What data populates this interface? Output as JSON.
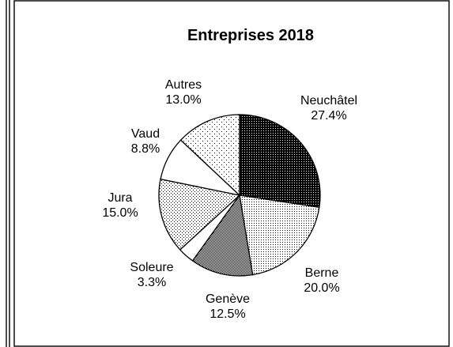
{
  "chart_data": {
    "type": "pie",
    "title": "Entreprises 2018",
    "slices": [
      {
        "label": "Neuchâtel",
        "percent_label": "27.4%",
        "value": 27.4,
        "pattern": "dense-dots"
      },
      {
        "label": "Berne",
        "percent_label": "20.0%",
        "value": 20.0,
        "pattern": "fine-dots"
      },
      {
        "label": "Genève",
        "percent_label": "12.5%",
        "value": 12.5,
        "pattern": "checker"
      },
      {
        "label": "Soleure",
        "percent_label": "3.3%",
        "value": 3.3,
        "pattern": "white"
      },
      {
        "label": "Jura",
        "percent_label": "15.0%",
        "value": 15.0,
        "pattern": "medium-dots"
      },
      {
        "label": "Vaud",
        "percent_label": "8.8%",
        "value": 8.8,
        "pattern": "white"
      },
      {
        "label": "Autres",
        "percent_label": "13.0%",
        "value": 13.0,
        "pattern": "sparse-dots"
      }
    ],
    "start_angle_deg": 0,
    "direction": "clockwise",
    "legend": "none"
  }
}
